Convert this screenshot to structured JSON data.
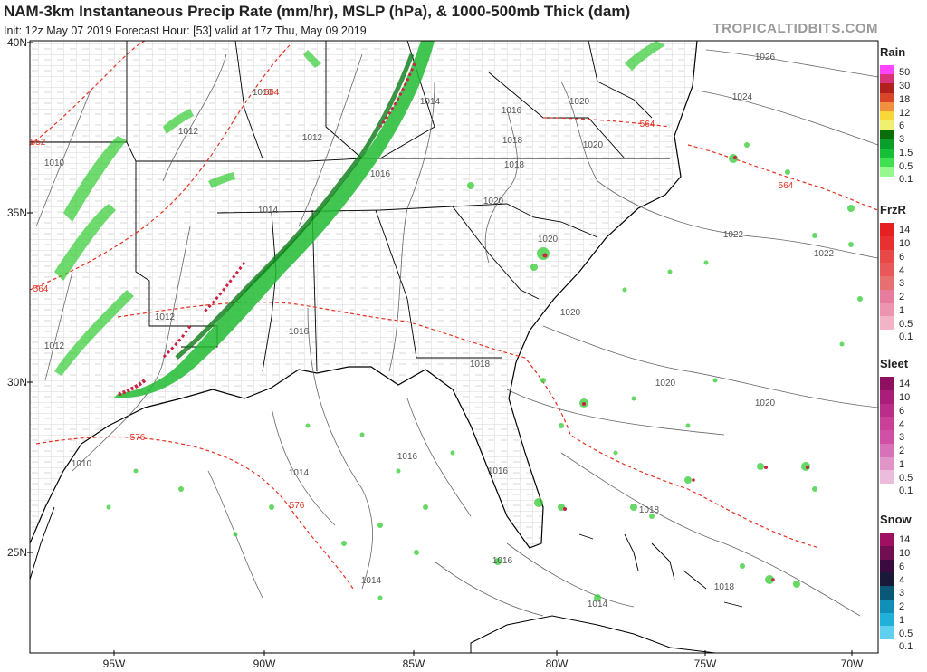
{
  "header": {
    "title": "NAM-3km Instantaneous Precip Rate (mm/hr), MSLP (hPa), & 1000-500mb Thick (dam)",
    "subtitle": "Init: 12z May 07 2019   Forecast Hour: [53]   valid at 17z Thu, May 09 2019",
    "brand": "TROPICALTIDBITS.COM"
  },
  "map": {
    "lat_labels": [
      "40N",
      "35N",
      "30N",
      "25N"
    ],
    "lon_labels": [
      "95W",
      "90W",
      "85W",
      "80W",
      "75W",
      "70W"
    ],
    "isobar_labels": [
      "1026",
      "1024",
      "1020",
      "1020",
      "1018",
      "1018",
      "1016",
      "1016",
      "1014",
      "1014",
      "1012",
      "1012",
      "1012",
      "1010",
      "1010",
      "1014",
      "1018",
      "1016",
      "1020",
      "1020",
      "1020",
      "1022",
      "1022",
      "1020",
      "1018",
      "1018",
      "1016",
      "1016",
      "1016",
      "1014",
      "1014",
      "1012",
      "1010",
      "1020"
    ],
    "thickness_labels": [
      "564",
      "564",
      "564",
      "564",
      "552",
      "576",
      "576"
    ],
    "colors": {
      "isobar": "#555555",
      "thickness": "#e53020",
      "borders": "#000000",
      "counties": "#999999",
      "precip_light": "#33cc33",
      "precip_mid": "#118811",
      "precip_heavy": "#cc2244"
    }
  },
  "legends": {
    "rain": {
      "title": "Rain",
      "labels": [
        "50",
        "30",
        "18",
        "12",
        "6",
        "3",
        "1.5",
        "0.5",
        "0.1"
      ],
      "colors": [
        "#ff44ff",
        "#d8347a",
        "#b0201c",
        "#d8452a",
        "#f09040",
        "#f8d838",
        "#f0f070",
        "#0a6e0a",
        "#0a9e2a",
        "#18c038",
        "#40e050",
        "#98f890",
        "#ffffff"
      ]
    },
    "frzr": {
      "title": "FrzR",
      "labels": [
        "14",
        "10",
        "6",
        "4",
        "3",
        "2",
        "1",
        "0.5",
        "0.1"
      ],
      "colors": [
        "#e62020",
        "#e83030",
        "#e84848",
        "#e85858",
        "#e67070",
        "#e87c9e",
        "#ec94b0",
        "#f4b4c8",
        "#ffffff"
      ]
    },
    "sleet": {
      "title": "Sleet",
      "labels": [
        "14",
        "10",
        "6",
        "4",
        "3",
        "2",
        "1",
        "0.5",
        "0.1"
      ],
      "colors": [
        "#8e1060",
        "#a81e78",
        "#b82e88",
        "#c84098",
        "#d050a8",
        "#d872b8",
        "#e094c8",
        "#ecbcdc",
        "#ffffff"
      ]
    },
    "snow": {
      "title": "Snow",
      "labels": [
        "14",
        "10",
        "6",
        "4",
        "3",
        "2",
        "1",
        "0.5",
        "0.1"
      ],
      "colors": [
        "#a01060",
        "#701050",
        "#3a0a40",
        "#1a1a38",
        "#0a5878",
        "#1090b8",
        "#20b0d8",
        "#60d0ee",
        "#ffffff"
      ]
    }
  }
}
